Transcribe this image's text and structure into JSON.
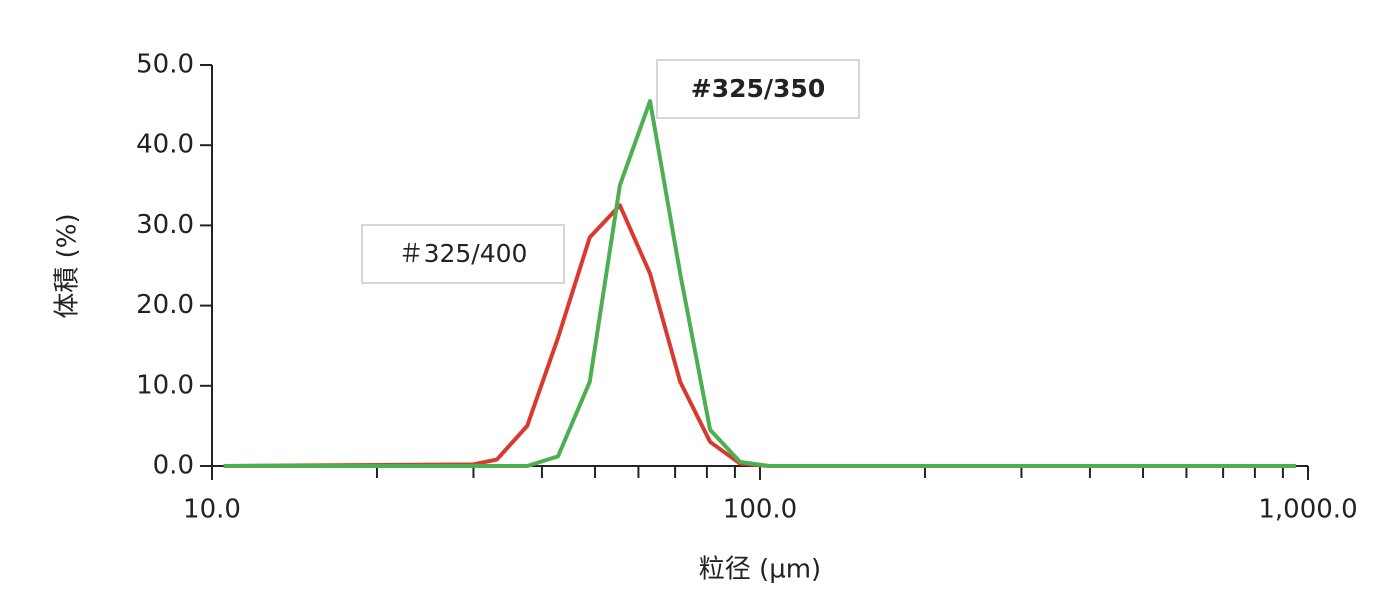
{
  "chart_data": {
    "type": "line",
    "x_label": "粒径 (µm)",
    "y_label": "体積 (%)",
    "xscale": "log",
    "x": [
      10.5,
      30,
      33.1,
      37.6,
      42.8,
      48.9,
      55.5,
      63,
      71.5,
      81.1,
      92,
      104,
      950
    ],
    "series": [
      {
        "name": "＃325/400",
        "color": "#d93a2f",
        "values": [
          0,
          0.2,
          0.8,
          5,
          16,
          28.5,
          32.5,
          24,
          10.5,
          3,
          0.3,
          0,
          0
        ]
      },
      {
        "name": "#325/350",
        "color": "#4caf50",
        "values": [
          0,
          0,
          0,
          0,
          1.2,
          10.5,
          35,
          45.5,
          24,
          4.5,
          0.5,
          0,
          0
        ]
      }
    ],
    "xlim": [
      10,
      1000
    ],
    "xticks": [
      {
        "value": 10,
        "label": "10.0"
      },
      {
        "value": 100,
        "label": "100.0"
      },
      {
        "value": 1000,
        "label": "1,000.0"
      }
    ],
    "xminorticks": [
      20,
      30,
      40,
      50,
      60,
      70,
      80,
      90,
      200,
      300,
      400,
      500,
      600,
      700,
      800,
      900
    ],
    "ylim": [
      0,
      50
    ],
    "yticks": [
      {
        "value": 0,
        "label": "0.0"
      },
      {
        "value": 10,
        "label": "10.0"
      },
      {
        "value": 20,
        "label": "20.0"
      },
      {
        "value": 30,
        "label": "30.0"
      },
      {
        "value": 40,
        "label": "40.0"
      },
      {
        "value": 50,
        "label": "50.0"
      }
    ]
  }
}
